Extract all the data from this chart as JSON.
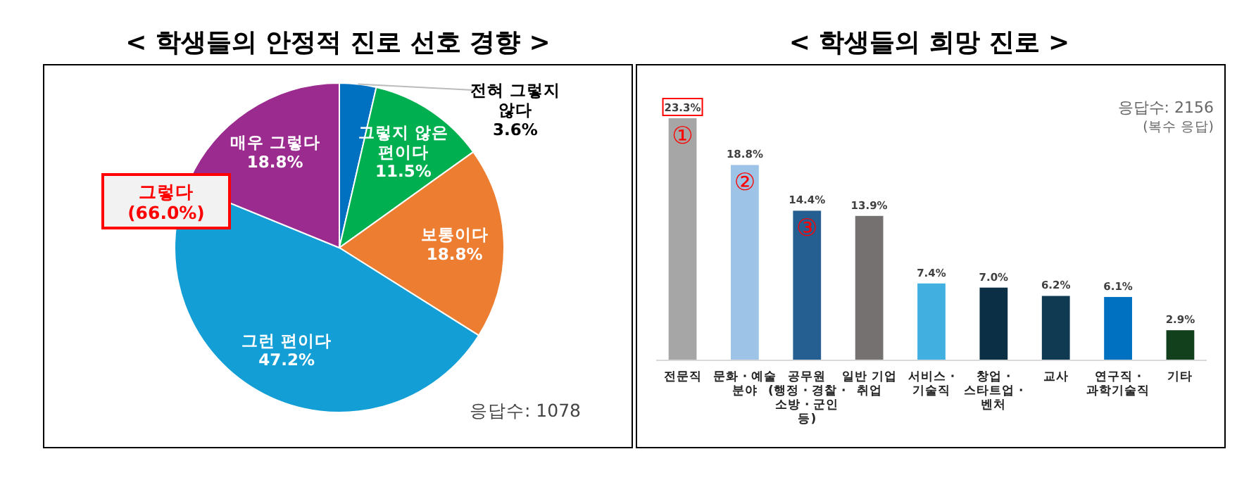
{
  "chart_data": [
    {
      "type": "pie",
      "title": "< 학생들의 안정적 진로 선호 경향 >",
      "categories": [
        "전혀 그렇지\n않다",
        "그렇지 않은\n편이다",
        "보통이다",
        "그런 편이다",
        "매우 그렇다"
      ],
      "values": [
        3.6,
        11.5,
        18.8,
        47.2,
        18.8
      ],
      "colors": [
        "#0070c0",
        "#00b050",
        "#ed7d31",
        "#139fd6",
        "#9b2b8f"
      ],
      "value_labels": [
        "3.6%",
        "11.5%",
        "18.8%",
        "47.2%",
        "18.8%"
      ],
      "annotations": [
        "그렇다\n(66.0%)",
        "응답수: 1078"
      ]
    },
    {
      "type": "bar",
      "title": "< 학생들의 희망 진로 >",
      "categories": [
        "전문직",
        "문화 · 예술\n분야",
        "공무원\n(행정 · 경찰 ·\n소방 · 군인\n등)",
        "일반 기업\n취업",
        "서비스 ·\n기술직",
        "창업 ·\n스타트업 ·\n벤처",
        "교사",
        "연구직 ·\n과학기술직",
        "기타"
      ],
      "values": [
        23.3,
        18.8,
        14.4,
        13.9,
        7.4,
        7.0,
        6.2,
        6.1,
        2.9
      ],
      "value_labels": [
        "23.3%",
        "18.8%",
        "14.4%",
        "13.9%",
        "7.4%",
        "7.0%",
        "6.2%",
        "6.1%",
        "2.9%"
      ],
      "colors": [
        "#a6a6a6",
        "#9dc3e6",
        "#255e91",
        "#767171",
        "#41b0e0",
        "#0b2f45",
        "#0f3a52",
        "#0070c0",
        "#123f1c"
      ],
      "grid": false,
      "annotations": [
        "응답수: 2156",
        "(복수 응답)",
        "①",
        "②",
        "③"
      ]
    }
  ]
}
